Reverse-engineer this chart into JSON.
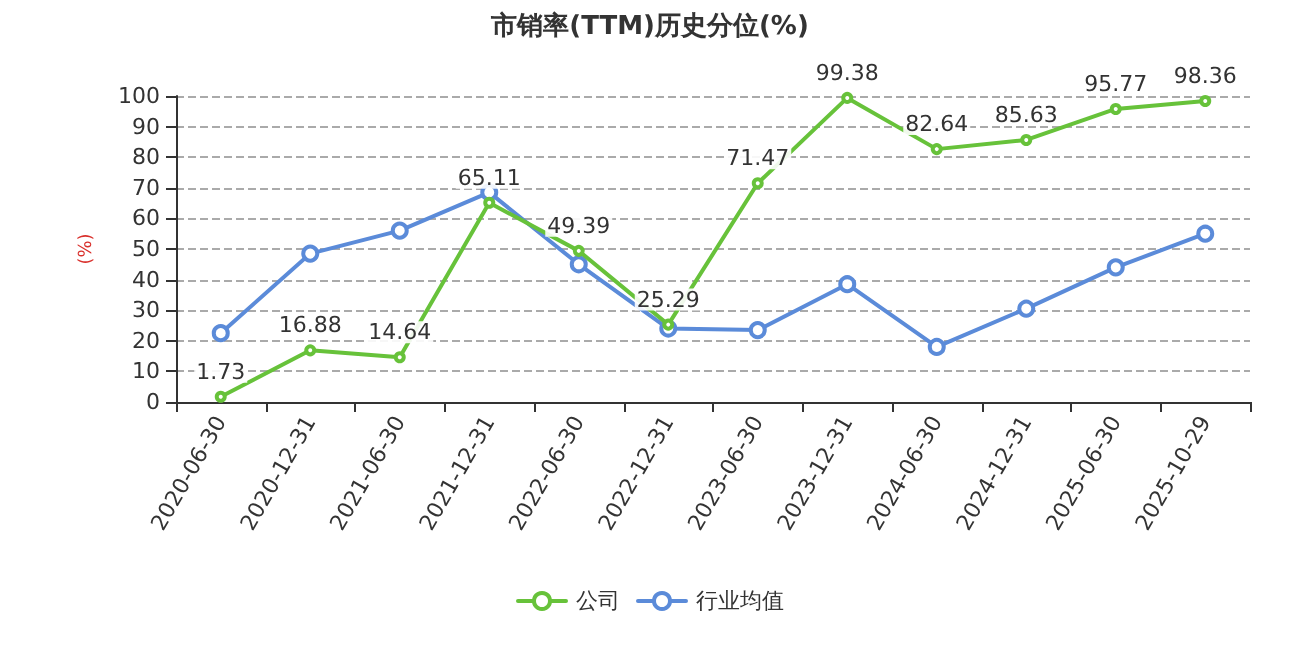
{
  "chart_data": {
    "type": "line",
    "title": "市销率(TTM)历史分位(%)",
    "ylabel": "(%)",
    "categories": [
      "2020-06-30",
      "2020-12-31",
      "2021-06-30",
      "2021-12-31",
      "2022-06-30",
      "2022-12-31",
      "2023-06-30",
      "2023-12-31",
      "2024-06-30",
      "2024-12-31",
      "2025-06-30",
      "2025-10-29"
    ],
    "series": [
      {
        "name": "公司",
        "color": "#67c23a",
        "values": [
          1.73,
          16.88,
          14.64,
          65.11,
          49.39,
          25.29,
          71.47,
          99.38,
          82.64,
          85.63,
          95.77,
          98.36
        ],
        "value_labels": [
          "1.73",
          "16.88",
          "14.64",
          "65.11",
          "49.39",
          "25.29",
          "71.47",
          "99.38",
          "82.64",
          "85.63",
          "95.77",
          "98.36"
        ]
      },
      {
        "name": "行业均值",
        "color": "#5b8bd9",
        "values": [
          22.5,
          48.5,
          56,
          68.5,
          45,
          24,
          23.5,
          38.5,
          18,
          30.5,
          44,
          55
        ]
      }
    ],
    "ylim": [
      0,
      100
    ],
    "yticks": [
      0,
      10,
      20,
      30,
      40,
      50,
      60,
      70,
      80,
      90,
      100
    ],
    "grid": "y",
    "legend": "bottom",
    "marker": "circle",
    "line_style": "solid"
  }
}
